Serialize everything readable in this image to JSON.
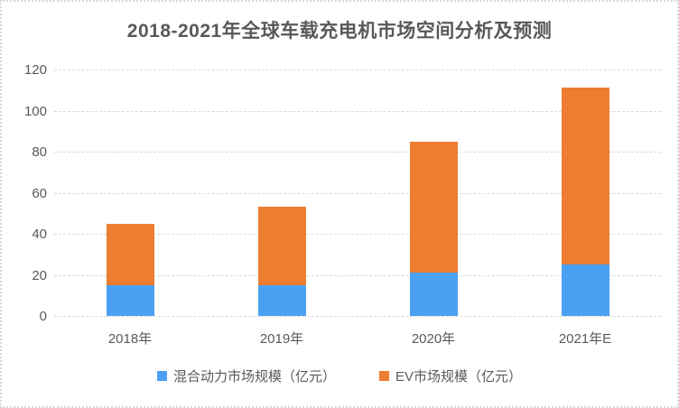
{
  "title": "2018-2021年全球车载充电机市场空间分析及预测",
  "colors": {
    "hybrid_series": "#4AA0F2",
    "ev_series": "#ED7D31",
    "gridline": "#D9D9D9",
    "text": "#595959",
    "frame_border": "#D6D6D6",
    "background": "#FFFFFF"
  },
  "chart_data": {
    "type": "bar",
    "stacked": true,
    "title": "2018-2021年全球车载充电机市场空间分析及预测",
    "categories": [
      "2018年",
      "2019年",
      "2020年",
      "2021年E"
    ],
    "series": [
      {
        "name": "混合动力市场规模（亿元）",
        "color": "#4AA0F2",
        "values": [
          15,
          15,
          21,
          25
        ]
      },
      {
        "name": "EV市场规模（亿元）",
        "color": "#ED7D31",
        "values": [
          30,
          38,
          64,
          86
        ]
      }
    ],
    "xlabel": "",
    "ylabel": "",
    "ylim": [
      0,
      120
    ],
    "yticks": [
      0,
      20,
      40,
      60,
      80,
      100,
      120
    ],
    "grid": true,
    "legend_position": "bottom"
  }
}
